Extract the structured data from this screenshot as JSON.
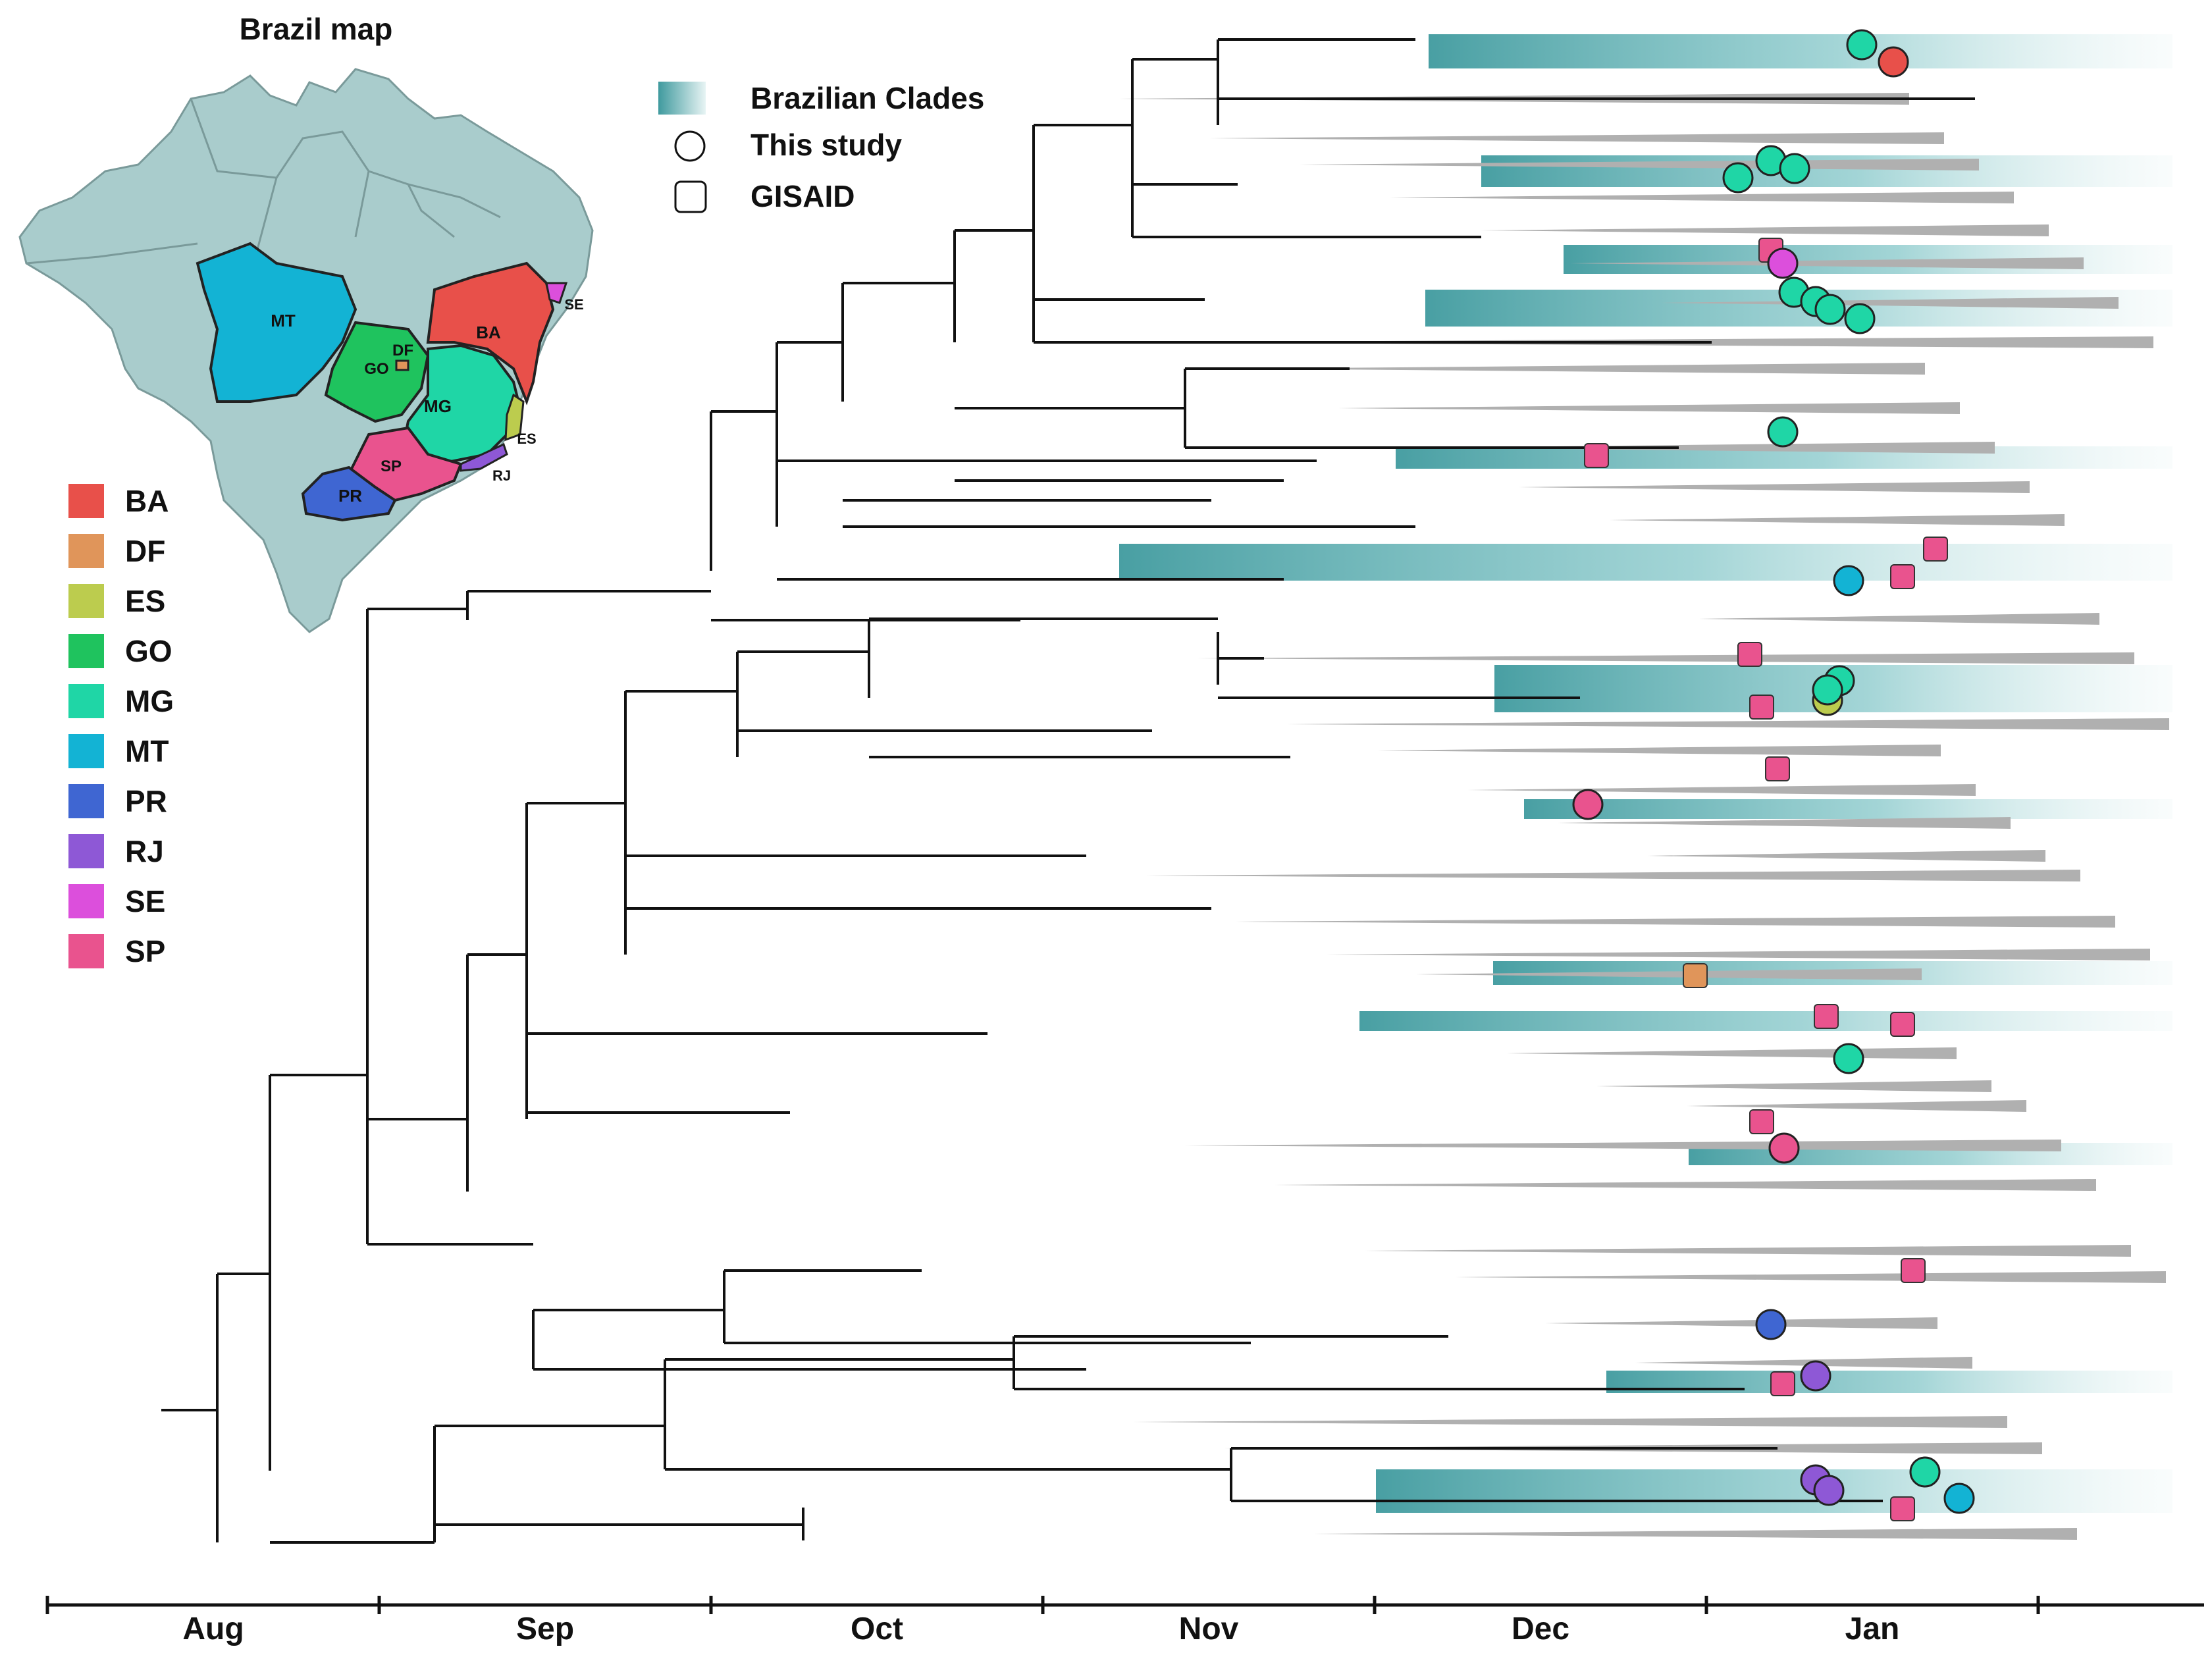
{
  "map": {
    "title": "Brazil map",
    "state_labels": [
      "MT",
      "DF",
      "GO",
      "BA",
      "MG",
      "SE",
      "ES",
      "SP",
      "RJ",
      "PR"
    ]
  },
  "legend": {
    "clades_label": "Brazilian Clades",
    "circle_label": "This study",
    "square_label": "GISAID",
    "clade_color": "#3f9a9e",
    "states": [
      {
        "code": "BA",
        "color": "#e8504a"
      },
      {
        "code": "DF",
        "color": "#e0955a"
      },
      {
        "code": "ES",
        "color": "#bccc4e"
      },
      {
        "code": "GO",
        "color": "#1fc35e"
      },
      {
        "code": "MG",
        "color": "#1fd6a6"
      },
      {
        "code": "MT",
        "color": "#13b3d4"
      },
      {
        "code": "PR",
        "color": "#3f66d2"
      },
      {
        "code": "RJ",
        "color": "#8e58d6"
      },
      {
        "code": "SE",
        "color": "#dc4fdc"
      },
      {
        "code": "SP",
        "color": "#e9538e"
      }
    ]
  },
  "axis": {
    "months": [
      "Aug",
      "Sep",
      "Oct",
      "Nov",
      "Dec",
      "Jan"
    ]
  },
  "markers": [
    {
      "type": "circle",
      "state": "MG"
    },
    {
      "type": "circle",
      "state": "BA"
    },
    {
      "type": "circle",
      "state": "MG"
    },
    {
      "type": "circle",
      "state": "MG"
    },
    {
      "type": "circle",
      "state": "MG"
    },
    {
      "type": "square",
      "state": "SP"
    },
    {
      "type": "circle",
      "state": "SE"
    },
    {
      "type": "circle",
      "state": "MG"
    },
    {
      "type": "circle",
      "state": "MG"
    },
    {
      "type": "circle",
      "state": "MG"
    },
    {
      "type": "circle",
      "state": "MG"
    },
    {
      "type": "circle",
      "state": "MG"
    },
    {
      "type": "square",
      "state": "SP"
    },
    {
      "type": "square",
      "state": "SP"
    },
    {
      "type": "square",
      "state": "SP"
    },
    {
      "type": "circle",
      "state": "MT"
    },
    {
      "type": "square",
      "state": "SP"
    },
    {
      "type": "circle",
      "state": "MG"
    },
    {
      "type": "circle",
      "state": "ES"
    },
    {
      "type": "circle",
      "state": "MG"
    },
    {
      "type": "square",
      "state": "SP"
    },
    {
      "type": "square",
      "state": "SP"
    },
    {
      "type": "circle",
      "state": "SP"
    },
    {
      "type": "square",
      "state": "DF"
    },
    {
      "type": "square",
      "state": "SP"
    },
    {
      "type": "square",
      "state": "SP"
    },
    {
      "type": "circle",
      "state": "MG"
    },
    {
      "type": "square",
      "state": "SP"
    },
    {
      "type": "circle",
      "state": "SP"
    },
    {
      "type": "square",
      "state": "SP"
    },
    {
      "type": "circle",
      "state": "PR"
    },
    {
      "type": "circle",
      "state": "RJ"
    },
    {
      "type": "square",
      "state": "SP"
    },
    {
      "type": "circle",
      "state": "RJ"
    },
    {
      "type": "circle",
      "state": "RJ"
    },
    {
      "type": "circle",
      "state": "MG"
    },
    {
      "type": "circle",
      "state": "MT"
    },
    {
      "type": "square",
      "state": "SP"
    }
  ]
}
